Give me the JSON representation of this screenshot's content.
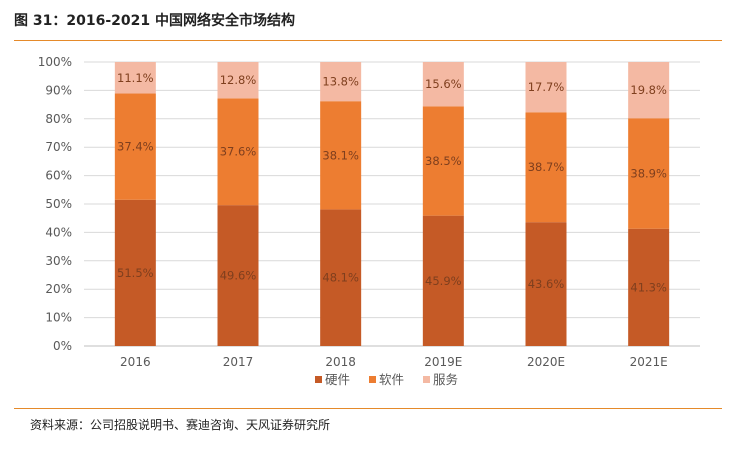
{
  "figure": {
    "title": "图 31：2016-2021 中国网络安全市场结构",
    "source": "资料来源：公司招股说明书、赛迪咨询、天风证券研究所"
  },
  "colors": {
    "硬件": "#c55a26",
    "软件": "#ed7d31",
    "服务": "#f4b9a3",
    "rule": "#e58a2a",
    "grid": "#d9d9d9"
  },
  "chart_data": {
    "type": "bar",
    "stacked": true,
    "title": "",
    "xlabel": "",
    "ylabel": "",
    "ylim": [
      0,
      100
    ],
    "y_ticks": [
      "0%",
      "10%",
      "20%",
      "30%",
      "40%",
      "50%",
      "60%",
      "70%",
      "80%",
      "90%",
      "100%"
    ],
    "categories": [
      "2016",
      "2017",
      "2018",
      "2019E",
      "2020E",
      "2021E"
    ],
    "series": [
      {
        "name": "硬件",
        "values": [
          51.5,
          49.6,
          48.1,
          45.9,
          43.6,
          41.3
        ],
        "labels": [
          "51.5%",
          "49.6%",
          "48.1%",
          "45.9%",
          "43.6%",
          "41.3%"
        ]
      },
      {
        "name": "软件",
        "values": [
          37.4,
          37.6,
          38.1,
          38.5,
          38.7,
          38.9
        ],
        "labels": [
          "37.4%",
          "37.6%",
          "38.1%",
          "38.5%",
          "38.7%",
          "38.9%"
        ]
      },
      {
        "name": "服务",
        "values": [
          11.1,
          12.8,
          13.8,
          15.6,
          17.7,
          19.8
        ],
        "labels": [
          "11.1%",
          "12.8%",
          "13.8%",
          "15.6%",
          "17.7%",
          "19.8%"
        ]
      }
    ],
    "legend_position": "bottom",
    "grid": true
  }
}
